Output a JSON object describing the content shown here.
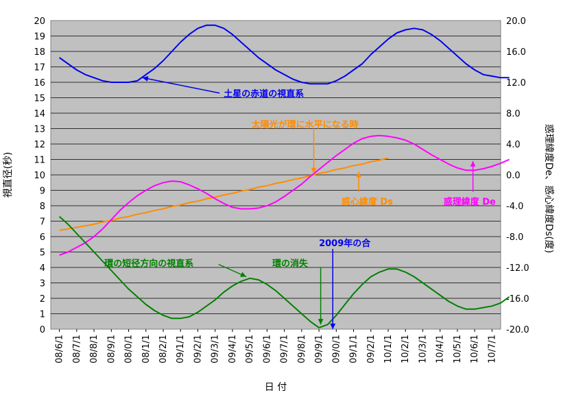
{
  "chart_data": {
    "type": "line",
    "xlabel": "日 付",
    "ylabel_left": "視直径(秒)",
    "ylabel_right": "惑理緯度De、惑心緯度Ds(度)",
    "ylim_left": [
      0,
      20
    ],
    "ylim_right": [
      -20,
      20
    ],
    "x_categories": [
      "08/6/1",
      "08/7/1",
      "08/8/1",
      "08/9/1",
      "08/0/1",
      "08/1/1",
      "08/2/1",
      "09/1/1",
      "09/2/1",
      "09/3/1",
      "09/4/1",
      "09/5/1",
      "09/6/1",
      "09/7/1",
      "09/8/1",
      "09/9/1",
      "09/0/1",
      "09/1/1",
      "09/2/1",
      "10/1/1",
      "10/2/1",
      "10/3/1",
      "10/4/1",
      "10/5/1",
      "10/6/1",
      "10/7/1"
    ],
    "y_ticks_left": [
      "0",
      "1",
      "2",
      "3",
      "4",
      "5",
      "6",
      "7",
      "8",
      "9",
      "10",
      "11",
      "12",
      "13",
      "14",
      "15",
      "16",
      "17",
      "18",
      "19",
      "20"
    ],
    "y_ticks_right": [
      "-20.0",
      "-16.0",
      "-12.0",
      "-8.0",
      "-4.0",
      "0.0",
      "4.0",
      "8.0",
      "12.0",
      "16.0",
      "20.0"
    ],
    "grid": true,
    "series": [
      {
        "name": "土星の赤道の視直系",
        "axis": "left",
        "color": "#0000ee",
        "x": [
          0,
          0.5,
          1,
          1.5,
          2,
          2.5,
          3,
          3.5,
          4,
          4.5,
          5,
          5.5,
          6,
          6.5,
          7,
          7.5,
          8,
          8.5,
          9,
          9.5,
          10,
          10.5,
          11,
          11.5,
          12,
          12.5,
          13,
          13.5,
          14,
          14.5,
          15,
          15.5,
          16,
          16.5,
          17,
          17.5,
          18,
          18.5,
          19,
          19.5,
          20,
          20.5,
          21,
          21.5,
          22,
          22.5,
          23,
          23.5,
          24,
          24.5,
          25,
          25.5,
          26
        ],
        "values": [
          17.6,
          17.2,
          16.8,
          16.5,
          16.3,
          16.1,
          16.0,
          16.0,
          16.0,
          16.1,
          16.5,
          16.9,
          17.4,
          18.0,
          18.6,
          19.1,
          19.5,
          19.7,
          19.7,
          19.5,
          19.1,
          18.6,
          18.1,
          17.6,
          17.2,
          16.8,
          16.5,
          16.2,
          16.0,
          15.9,
          15.9,
          15.9,
          16.1,
          16.4,
          16.8,
          17.2,
          17.8,
          18.3,
          18.8,
          19.2,
          19.4,
          19.5,
          19.4,
          19.1,
          18.7,
          18.2,
          17.7,
          17.2,
          16.8,
          16.5,
          16.4,
          16.3,
          16.3
        ]
      },
      {
        "name": "惑心緯度 Ds",
        "axis": "right",
        "color": "#ff8c00",
        "x": [
          0,
          0.5,
          1,
          1.5,
          2,
          2.5,
          3,
          3.5,
          4,
          4.5,
          5,
          5.5,
          6,
          6.5,
          7,
          7.5,
          8,
          8.5,
          9,
          9.5,
          10,
          10.5,
          11,
          11.5,
          12,
          12.5,
          13,
          13.5,
          14,
          14.5,
          15,
          15.5,
          16,
          16.5,
          17,
          17.5,
          18,
          18.5,
          19
        ],
        "values": [
          -7.2,
          -7.0,
          -6.8,
          -6.6,
          -6.4,
          -6.1,
          -5.9,
          -5.6,
          -5.4,
          -5.1,
          -4.9,
          -4.6,
          -4.4,
          -4.1,
          -3.9,
          -3.6,
          -3.4,
          -3.1,
          -2.9,
          -2.6,
          -2.4,
          -2.1,
          -1.9,
          -1.6,
          -1.4,
          -1.1,
          -0.9,
          -0.6,
          -0.4,
          -0.1,
          0.2,
          0.4,
          0.7,
          0.9,
          1.2,
          1.4,
          1.7,
          1.9,
          2.2
        ]
      },
      {
        "name": "惑理緯度 De",
        "axis": "right",
        "color": "#ff00ff",
        "x": [
          0,
          0.5,
          1,
          1.5,
          2,
          2.5,
          3,
          3.5,
          4,
          4.5,
          5,
          5.5,
          6,
          6.5,
          7,
          7.5,
          8,
          8.5,
          9,
          9.5,
          10,
          10.5,
          11,
          11.5,
          12,
          12.5,
          13,
          13.5,
          14,
          14.5,
          15,
          15.5,
          16,
          16.5,
          17,
          17.5,
          18,
          18.5,
          19,
          19.5,
          20,
          20.5,
          21,
          21.5,
          22,
          22.5,
          23,
          23.5,
          24,
          24.5,
          25,
          25.5,
          26
        ],
        "values": [
          -10.4,
          -10.0,
          -9.4,
          -8.8,
          -8.0,
          -7.0,
          -5.8,
          -4.6,
          -3.6,
          -2.7,
          -2.0,
          -1.4,
          -1.0,
          -0.8,
          -0.9,
          -1.3,
          -1.8,
          -2.4,
          -3.1,
          -3.7,
          -4.2,
          -4.4,
          -4.4,
          -4.3,
          -4.0,
          -3.5,
          -2.8,
          -2.0,
          -1.2,
          -0.2,
          0.7,
          1.6,
          2.5,
          3.3,
          4.1,
          4.7,
          5.0,
          5.1,
          5.0,
          4.8,
          4.5,
          4.0,
          3.3,
          2.6,
          2.0,
          1.4,
          0.9,
          0.6,
          0.6,
          0.8,
          1.1,
          1.5,
          2.0
        ]
      },
      {
        "name": "環の短径方向の視直系",
        "axis": "left",
        "color": "#008000",
        "x": [
          0,
          0.5,
          1,
          1.5,
          2,
          2.5,
          3,
          3.5,
          4,
          4.5,
          5,
          5.5,
          6,
          6.5,
          7,
          7.5,
          8,
          8.5,
          9,
          9.5,
          10,
          10.5,
          11,
          11.5,
          12,
          12.5,
          13,
          13.5,
          14,
          14.5,
          15,
          15.5,
          16,
          16.5,
          17,
          17.5,
          18,
          18.5,
          19,
          19.5,
          20,
          20.5,
          21,
          21.5,
          22,
          22.5,
          23,
          23.5,
          24,
          24.5,
          25,
          25.5,
          26
        ],
        "values": [
          7.3,
          6.8,
          6.2,
          5.6,
          5.0,
          4.4,
          3.8,
          3.2,
          2.6,
          2.1,
          1.6,
          1.2,
          0.9,
          0.7,
          0.7,
          0.8,
          1.1,
          1.5,
          1.9,
          2.4,
          2.8,
          3.1,
          3.3,
          3.2,
          2.9,
          2.5,
          2.0,
          1.5,
          1.0,
          0.5,
          0.1,
          0.3,
          0.9,
          1.6,
          2.3,
          2.9,
          3.4,
          3.7,
          3.9,
          3.9,
          3.7,
          3.4,
          3.0,
          2.6,
          2.2,
          1.8,
          1.5,
          1.3,
          1.3,
          1.4,
          1.5,
          1.7,
          2.1
        ]
      }
    ],
    "annotations": [
      {
        "text": "土星の赤道の視直系",
        "color": "#0000ee",
        "x": 9.5,
        "y": 15.3,
        "arrow_to": [
          4.8,
          16.3
        ],
        "arrow_x_axis": "left"
      },
      {
        "text": "太陽光が環に水平になる時",
        "color": "#ff8c00",
        "x": 11.1,
        "y": 13.3,
        "arrow_to": [
          14.7,
          10.1
        ],
        "arrow_from": [
          14.7,
          13.0
        ]
      },
      {
        "text": "惑心緯度 Ds",
        "color": "#ff8c00",
        "x": 16.3,
        "y": 8.3,
        "arrow_to": [
          17.3,
          10.2
        ],
        "arrow_from": [
          17.3,
          8.9
        ]
      },
      {
        "text": "惑理緯度 De",
        "color": "#ff00ff",
        "x": 22.2,
        "y": 8.3,
        "arrow_to": [
          23.9,
          10.9
        ],
        "arrow_from": [
          23.9,
          8.9
        ]
      },
      {
        "text": "環の短径方向の視直系",
        "color": "#008000",
        "x": 2.6,
        "y": 4.3,
        "arrow_to": [
          10.8,
          3.4
        ],
        "arrow_from": [
          9.2,
          4.2
        ]
      },
      {
        "text": "環の消失",
        "color": "#008000",
        "x": 12.3,
        "y": 4.3,
        "arrow_to": [
          15.1,
          0.3
        ],
        "arrow_from": [
          15.1,
          4.0
        ]
      },
      {
        "text": "2009年の合",
        "color": "#0000ee",
        "x": 15.0,
        "y": 5.6,
        "arrow_to": [
          15.8,
          0.0
        ],
        "arrow_from": [
          15.8,
          5.2
        ]
      }
    ]
  }
}
